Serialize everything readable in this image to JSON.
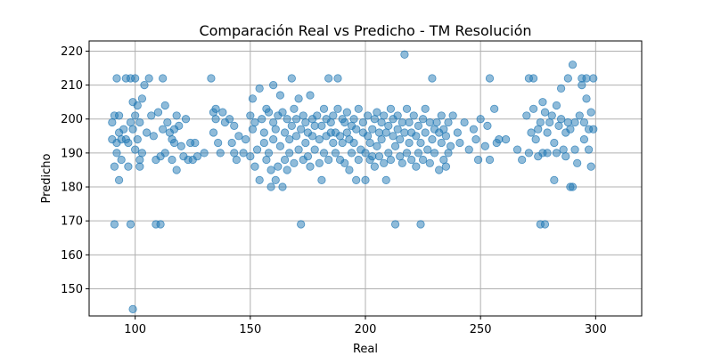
{
  "chart_data": {
    "type": "scatter",
    "title": "Comparación Real vs Predicho - TM Resolución",
    "xlabel": "Real",
    "ylabel": "Predicho",
    "xlim": [
      80,
      320
    ],
    "ylim": [
      142,
      223
    ],
    "xticks": [
      100,
      150,
      200,
      250,
      300
    ],
    "yticks": [
      150,
      160,
      170,
      180,
      190,
      200,
      210,
      220
    ],
    "grid": true,
    "point_color": "#1f77b4",
    "point_alpha": 0.5,
    "series": [
      {
        "points": [
          [
            90,
            199
          ],
          [
            91,
            201
          ],
          [
            90,
            194
          ],
          [
            92,
            193
          ],
          [
            91,
            186
          ],
          [
            91,
            169
          ],
          [
            92,
            212
          ],
          [
            93,
            196
          ],
          [
            93,
            182
          ],
          [
            94,
            194
          ],
          [
            92,
            190
          ],
          [
            93,
            201
          ],
          [
            94,
            188
          ],
          [
            95,
            197
          ],
          [
            96,
            194
          ],
          [
            96,
            212
          ],
          [
            97,
            186
          ],
          [
            97,
            193
          ],
          [
            98,
            199
          ],
          [
            98,
            212
          ],
          [
            98,
            169
          ],
          [
            99,
            144
          ],
          [
            99,
            205
          ],
          [
            99,
            197
          ],
          [
            100,
            201
          ],
          [
            100,
            212
          ],
          [
            100,
            191
          ],
          [
            101,
            204
          ],
          [
            101,
            194
          ],
          [
            102,
            186
          ],
          [
            102,
            199
          ],
          [
            102,
            188
          ],
          [
            103,
            190
          ],
          [
            103,
            206
          ],
          [
            104,
            210
          ],
          [
            105,
            196
          ],
          [
            106,
            212
          ],
          [
            107,
            201
          ],
          [
            108,
            195
          ],
          [
            109,
            169
          ],
          [
            109,
            188
          ],
          [
            110,
            202
          ],
          [
            111,
            169
          ],
          [
            111,
            189
          ],
          [
            112,
            212
          ],
          [
            112,
            197
          ],
          [
            113,
            190
          ],
          [
            113,
            204
          ],
          [
            114,
            199
          ],
          [
            115,
            196
          ],
          [
            116,
            194
          ],
          [
            116,
            188
          ],
          [
            117,
            193
          ],
          [
            117,
            197
          ],
          [
            118,
            185
          ],
          [
            118,
            201
          ],
          [
            119,
            198
          ],
          [
            120,
            192
          ],
          [
            121,
            189
          ],
          [
            122,
            200
          ],
          [
            123,
            188
          ],
          [
            124,
            193
          ],
          [
            125,
            188
          ],
          [
            126,
            193
          ],
          [
            127,
            189
          ],
          [
            130,
            190
          ],
          [
            133,
            212
          ],
          [
            134,
            202
          ],
          [
            134,
            196
          ],
          [
            135,
            200
          ],
          [
            135,
            203
          ],
          [
            136,
            193
          ],
          [
            137,
            190
          ],
          [
            138,
            202
          ],
          [
            139,
            199
          ],
          [
            141,
            200
          ],
          [
            142,
            193
          ],
          [
            143,
            190
          ],
          [
            143,
            198
          ],
          [
            144,
            188
          ],
          [
            145,
            195
          ],
          [
            147,
            190
          ],
          [
            148,
            194
          ],
          [
            150,
            201
          ],
          [
            150,
            189
          ],
          [
            151,
            197
          ],
          [
            151,
            206
          ],
          [
            152,
            186
          ],
          [
            152,
            199
          ],
          [
            153,
            191
          ],
          [
            154,
            209
          ],
          [
            154,
            182
          ],
          [
            155,
            200
          ],
          [
            156,
            196
          ],
          [
            156,
            193
          ],
          [
            157,
            203
          ],
          [
            157,
            188
          ],
          [
            158,
            202
          ],
          [
            158,
            190
          ],
          [
            159,
            180
          ],
          [
            159,
            185
          ],
          [
            160,
            199
          ],
          [
            160,
            194
          ],
          [
            160,
            210
          ],
          [
            161,
            182
          ],
          [
            161,
            197
          ],
          [
            162,
            186
          ],
          [
            162,
            201
          ],
          [
            163,
            207
          ],
          [
            163,
            192
          ],
          [
            164,
            202
          ],
          [
            164,
            180
          ],
          [
            165,
            196
          ],
          [
            165,
            188
          ],
          [
            166,
            185
          ],
          [
            166,
            200
          ],
          [
            167,
            194
          ],
          [
            167,
            190
          ],
          [
            168,
            212
          ],
          [
            168,
            198
          ],
          [
            169,
            203
          ],
          [
            169,
            187
          ],
          [
            170,
            195
          ],
          [
            170,
            200
          ],
          [
            171,
            191
          ],
          [
            171,
            206
          ],
          [
            172,
            169
          ],
          [
            172,
            197
          ],
          [
            173,
            201
          ],
          [
            173,
            188
          ],
          [
            174,
            193
          ],
          [
            174,
            199
          ],
          [
            175,
            196
          ],
          [
            175,
            189
          ],
          [
            176,
            207
          ],
          [
            176,
            186
          ],
          [
            177,
            195
          ],
          [
            177,
            200
          ],
          [
            178,
            191
          ],
          [
            178,
            198
          ],
          [
            179,
            201
          ],
          [
            180,
            187
          ],
          [
            180,
            194
          ],
          [
            181,
            198
          ],
          [
            181,
            182
          ],
          [
            182,
            203
          ],
          [
            182,
            190
          ],
          [
            183,
            195
          ],
          [
            183,
            200
          ],
          [
            184,
            212
          ],
          [
            184,
            188
          ],
          [
            185,
            196
          ],
          [
            185,
            199
          ],
          [
            186,
            193
          ],
          [
            186,
            201
          ],
          [
            187,
            190
          ],
          [
            187,
            196
          ],
          [
            188,
            212
          ],
          [
            188,
            203
          ],
          [
            189,
            188
          ],
          [
            189,
            195
          ],
          [
            190,
            200
          ],
          [
            190,
            193
          ],
          [
            191,
            199
          ],
          [
            191,
            187
          ],
          [
            192,
            196
          ],
          [
            192,
            202
          ],
          [
            193,
            185
          ],
          [
            193,
            194
          ],
          [
            194,
            198
          ],
          [
            194,
            190
          ],
          [
            195,
            200
          ],
          [
            195,
            193
          ],
          [
            196,
            182
          ],
          [
            196,
            197
          ],
          [
            197,
            188
          ],
          [
            197,
            203
          ],
          [
            198,
            191
          ],
          [
            199,
            196
          ],
          [
            199,
            199
          ],
          [
            200,
            182
          ],
          [
            200,
            190
          ],
          [
            201,
            195
          ],
          [
            201,
            201
          ],
          [
            202,
            188
          ],
          [
            202,
            193
          ],
          [
            203,
            197
          ],
          [
            203,
            189
          ],
          [
            204,
            186
          ],
          [
            204,
            200
          ],
          [
            205,
            202
          ],
          [
            205,
            192
          ],
          [
            206,
            196
          ],
          [
            206,
            189
          ],
          [
            207,
            194
          ],
          [
            207,
            199
          ],
          [
            208,
            201
          ],
          [
            208,
            187
          ],
          [
            209,
            182
          ],
          [
            209,
            196
          ],
          [
            210,
            190
          ],
          [
            210,
            198
          ],
          [
            211,
            203
          ],
          [
            211,
            188
          ],
          [
            212,
            195
          ],
          [
            212,
            200
          ],
          [
            213,
            169
          ],
          [
            213,
            192
          ],
          [
            214,
            197
          ],
          [
            214,
            201
          ],
          [
            215,
            189
          ],
          [
            215,
            194
          ],
          [
            216,
            199
          ],
          [
            216,
            187
          ],
          [
            217,
            219
          ],
          [
            217,
            196
          ],
          [
            218,
            203
          ],
          [
            218,
            190
          ],
          [
            219,
            193
          ],
          [
            219,
            199
          ],
          [
            220,
            188
          ],
          [
            220,
            196
          ],
          [
            221,
            201
          ],
          [
            222,
            186
          ],
          [
            222,
            195
          ],
          [
            223,
            190
          ],
          [
            223,
            198
          ],
          [
            224,
            169
          ],
          [
            224,
            193
          ],
          [
            225,
            200
          ],
          [
            225,
            188
          ],
          [
            226,
            196
          ],
          [
            226,
            203
          ],
          [
            227,
            191
          ],
          [
            228,
            187
          ],
          [
            228,
            199
          ],
          [
            229,
            212
          ],
          [
            229,
            194
          ],
          [
            230,
            197
          ],
          [
            230,
            190
          ],
          [
            231,
            199
          ],
          [
            232,
            185
          ],
          [
            232,
            196
          ],
          [
            233,
            193
          ],
          [
            233,
            201
          ],
          [
            234,
            188
          ],
          [
            234,
            197
          ],
          [
            235,
            186
          ],
          [
            235,
            195
          ],
          [
            236,
            199
          ],
          [
            236,
            190
          ],
          [
            237,
            192
          ],
          [
            238,
            201
          ],
          [
            240,
            196
          ],
          [
            241,
            193
          ],
          [
            243,
            199
          ],
          [
            245,
            191
          ],
          [
            247,
            197
          ],
          [
            248,
            194
          ],
          [
            249,
            188
          ],
          [
            250,
            200
          ],
          [
            252,
            192
          ],
          [
            253,
            198
          ],
          [
            254,
            212
          ],
          [
            254,
            188
          ],
          [
            256,
            203
          ],
          [
            257,
            193
          ],
          [
            258,
            194
          ],
          [
            261,
            194
          ],
          [
            266,
            191
          ],
          [
            268,
            188
          ],
          [
            270,
            201
          ],
          [
            271,
            212
          ],
          [
            271,
            190
          ],
          [
            272,
            196
          ],
          [
            273,
            203
          ],
          [
            273,
            212
          ],
          [
            274,
            194
          ],
          [
            275,
            197
          ],
          [
            275,
            189
          ],
          [
            276,
            199
          ],
          [
            276,
            169
          ],
          [
            277,
            205
          ],
          [
            277,
            190
          ],
          [
            278,
            169
          ],
          [
            278,
            202
          ],
          [
            279,
            196
          ],
          [
            279,
            190
          ],
          [
            280,
            199
          ],
          [
            281,
            201
          ],
          [
            282,
            182
          ],
          [
            282,
            193
          ],
          [
            283,
            204
          ],
          [
            283,
            190
          ],
          [
            284,
            198
          ],
          [
            285,
            209
          ],
          [
            285,
            200
          ],
          [
            286,
            191
          ],
          [
            287,
            189
          ],
          [
            287,
            196
          ],
          [
            288,
            212
          ],
          [
            288,
            199
          ],
          [
            289,
            180
          ],
          [
            289,
            197
          ],
          [
            290,
            216
          ],
          [
            290,
            180
          ],
          [
            291,
            199
          ],
          [
            291,
            191
          ],
          [
            292,
            187
          ],
          [
            293,
            201
          ],
          [
            294,
            210
          ],
          [
            294,
            212
          ],
          [
            295,
            194
          ],
          [
            295,
            199
          ],
          [
            296,
            212
          ],
          [
            296,
            206
          ],
          [
            297,
            197
          ],
          [
            297,
            191
          ],
          [
            298,
            202
          ],
          [
            298,
            186
          ],
          [
            299,
            212
          ],
          [
            299,
            197
          ]
        ]
      }
    ]
  }
}
